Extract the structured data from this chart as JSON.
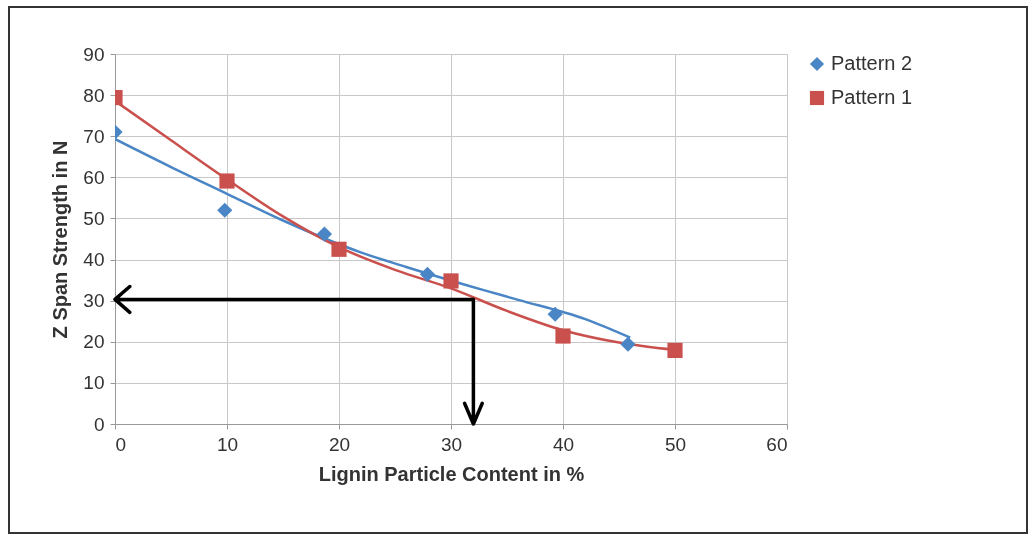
{
  "chart_data": {
    "type": "scatter",
    "xlabel": "Lignin Particle Content in %",
    "ylabel": "Z Span Strength in N",
    "xlim": [
      0,
      60
    ],
    "xticks": [
      0,
      10,
      20,
      30,
      40,
      50,
      60
    ],
    "ylim": [
      0,
      90
    ],
    "yticks": [
      0,
      10,
      20,
      30,
      40,
      50,
      60,
      70,
      80,
      90
    ],
    "grid": true,
    "legend": "right",
    "series": [
      {
        "name": "Pattern 2",
        "marker": "diamond",
        "color": "#4a86c5",
        "x": [
          0,
          9.8,
          18.7,
          27.9,
          39.3,
          45.8
        ],
        "values": [
          71,
          52,
          46.2,
          36.4,
          26.7,
          19.4
        ]
      },
      {
        "name": "Pattern 1",
        "marker": "square",
        "color": "#c9504d",
        "x": [
          0,
          10,
          20,
          30,
          40,
          50
        ],
        "values": [
          79.4,
          59.1,
          42.5,
          34.8,
          21.4,
          17.9
        ]
      },
      {
        "type": "line",
        "color": "#4a86c5",
        "x": [
          0,
          5,
          10,
          15,
          22,
          26,
          33,
          36,
          42,
          46
        ],
        "values": [
          69.3,
          62.5,
          56,
          49.5,
          41.7,
          38.2,
          32.5,
          30.2,
          25.5,
          21
        ]
      },
      {
        "type": "line",
        "color": "#c9504d",
        "x": [
          0,
          5,
          10,
          15,
          20,
          25,
          30,
          35,
          40,
          45,
          50
        ],
        "values": [
          78.6,
          69,
          59.5,
          50.5,
          43,
          37.5,
          33,
          27.5,
          22.8,
          19.8,
          18
        ]
      }
    ],
    "ref_lines": [
      {
        "axis": "x",
        "value": 32,
        "color": "#000000"
      },
      {
        "axis": "y",
        "value": 30.3,
        "color": "#000000"
      }
    ]
  }
}
